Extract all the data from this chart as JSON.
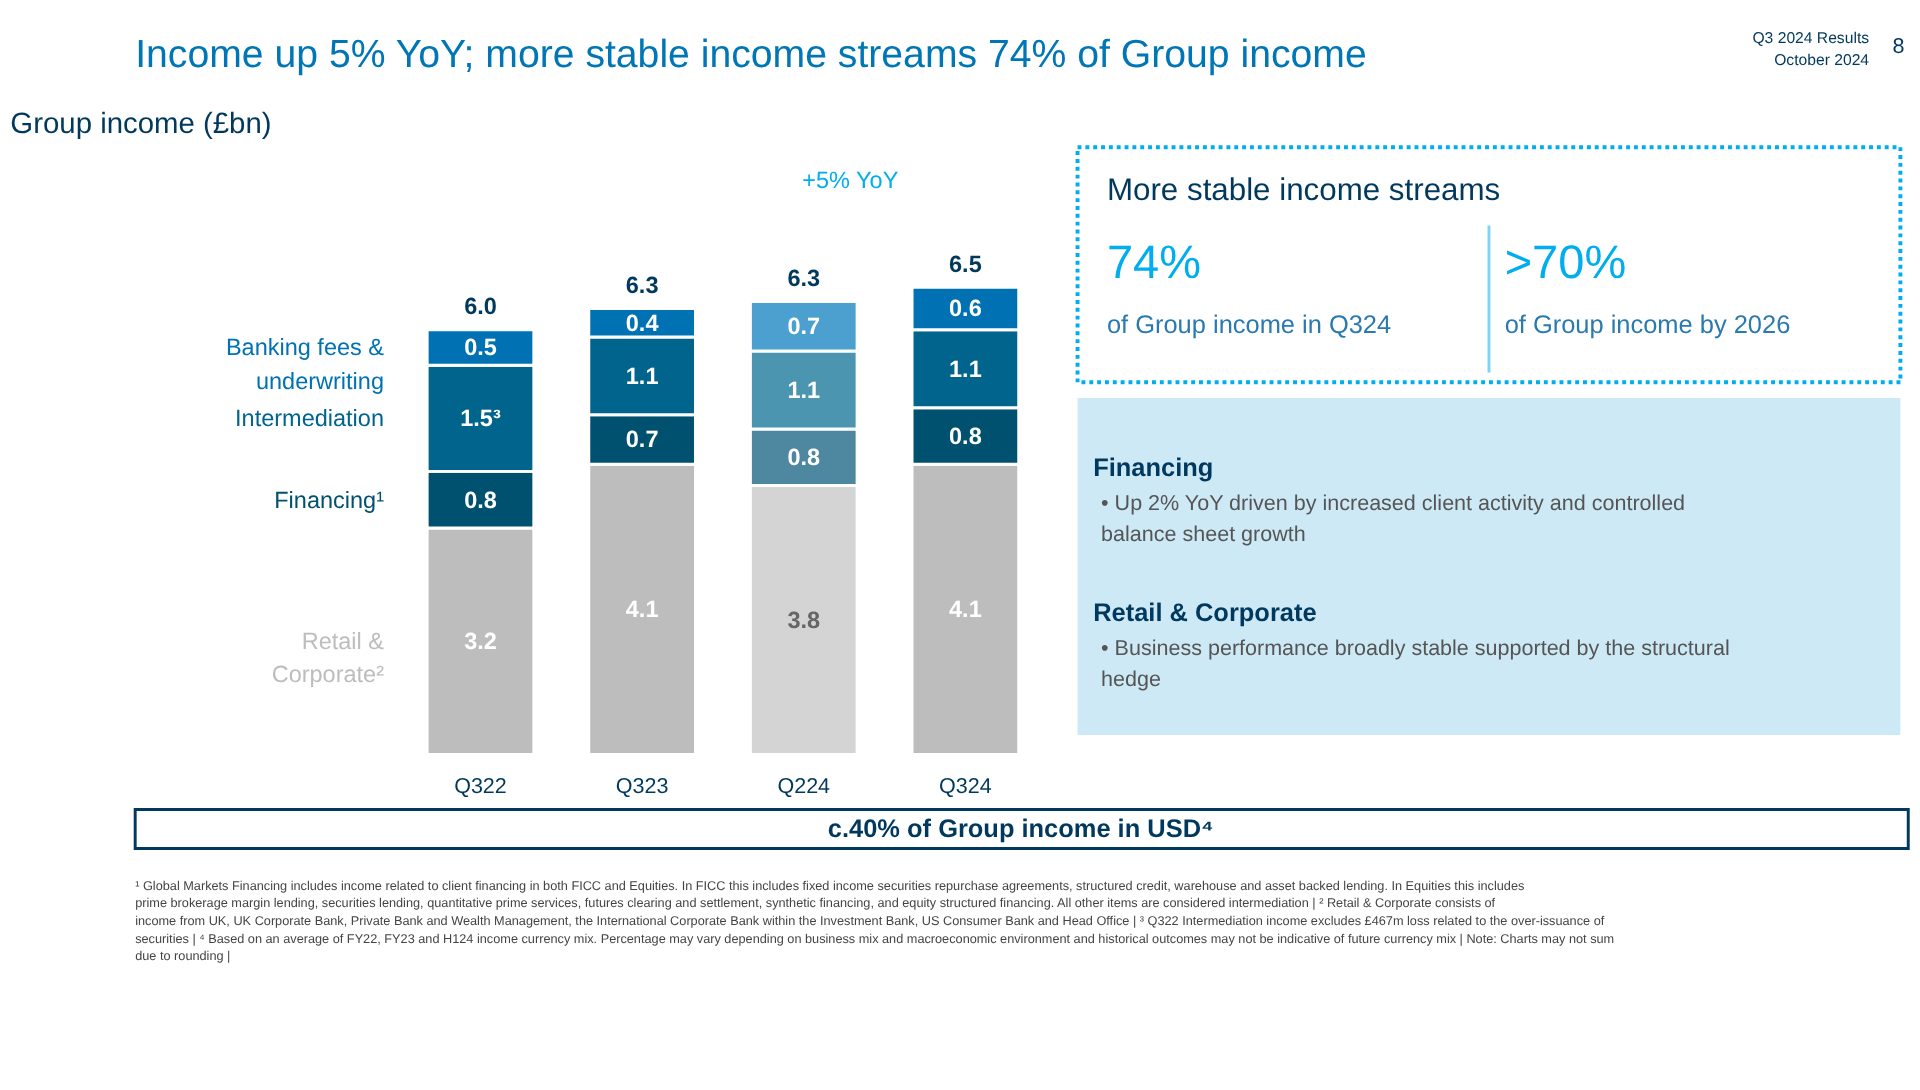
{
  "chart_data": {
    "type": "bar",
    "title": "Income up 5% YoY; more stable income streams 74% of Group income",
    "subtitle": "Group income (£bn)",
    "stacked": true,
    "categories": [
      "Q322",
      "Q323",
      "Q224",
      "Q324"
    ],
    "series": [
      {
        "name": "Retail & Corporate²",
        "color": "#bdbdbd",
        "colors": [
          "#bdbdbd",
          "#bdbdbd",
          "#d4d4d4",
          "#bdbdbd"
        ],
        "values": [
          3.2,
          4.1,
          3.8,
          4.1
        ],
        "value_labels": [
          "3.2",
          "4.1",
          "3.8",
          "4.1"
        ]
      },
      {
        "name": "Financing¹",
        "color": "#00506f",
        "colors": [
          "#00506f",
          "#00506f",
          "#4e87a0",
          "#00506f"
        ],
        "values": [
          0.8,
          0.7,
          0.8,
          0.8
        ],
        "value_labels": [
          "0.8",
          "0.7",
          "0.8",
          "0.8"
        ]
      },
      {
        "name": "Intermediation",
        "color": "#00648c",
        "colors": [
          "#00648c",
          "#00648c",
          "#4b95b1",
          "#00648c"
        ],
        "values": [
          1.5,
          1.1,
          1.1,
          1.1
        ],
        "value_labels": [
          "1.5³",
          "1.1",
          "1.1",
          "1.1"
        ]
      },
      {
        "name": "Banking fees & underwriting",
        "color": "#0072b3",
        "colors": [
          "#0072b3",
          "#0072b3",
          "#4ba0cf",
          "#0072b3"
        ],
        "values": [
          0.5,
          0.4,
          0.7,
          0.6
        ],
        "value_labels": [
          "0.5",
          "0.4",
          "0.7",
          "0.6"
        ]
      }
    ],
    "totals": [
      "6.0",
      "6.3",
      "6.3",
      "6.5"
    ],
    "annotations": [
      "+5% YoY",
      "Q3 2024 Results",
      "October 2024",
      "8",
      "More stable income streams",
      "74%",
      "of Group income in Q324",
      ">70%",
      "of Group income by 2026",
      "Financing",
      "• Up 2% YoY driven by increased client activity and controlled balance sheet growth",
      "Retail & Corporate",
      "• Business performance broadly stable supported by the structural hedge",
      "c.40% of Group income in USD⁴",
      "¹ Global Markets Financing includes income related to client financing in both FICC and Equities. In FICC this includes fixed income securities repurchase agreements, structured credit, warehouse and asset backed lending. In Equities this includes prime brokerage margin lending, securities lending, quantitative prime services, futures clearing and settlement, synthetic financing, and equity structured financing. All other items are considered intermediation | ² Retail & Corporate consists of income from UK, UK Corporate Bank, Private Bank and Wealth Management, the International Corporate Bank within the Investment Bank, US Consumer Bank and Head Office | ³ Q322 Intermediation income excludes £467m loss related to the over-issuance of securities | ⁴ Based on an average of FY22, FY23 and H124 income currency mix. Percentage may vary depending on business mix and macroeconomic environment and historical outcomes may not be indicative of future currency mix | Note: Charts may not sum due to rounding |"
    ]
  }
}
